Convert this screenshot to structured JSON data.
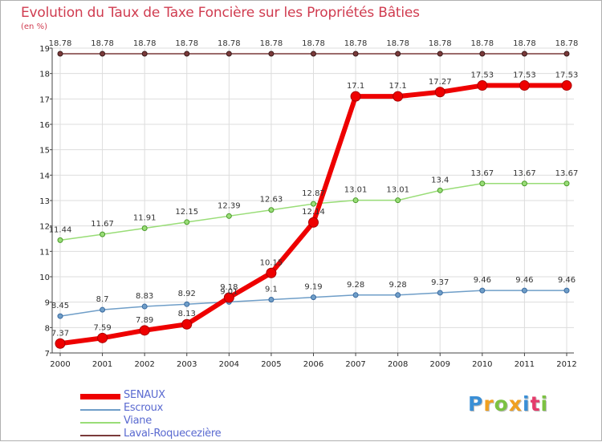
{
  "title": "Evolution du Taux de Taxe Foncière sur les Propriétés Bâties",
  "unit": "(en %)",
  "brand": {
    "letters": [
      "P",
      "r",
      "o",
      "x",
      "i",
      "t",
      "i"
    ],
    "colors": [
      "#3a8fd6",
      "#f0a020",
      "#7cc242",
      "#f0a020",
      "#3a8fd6",
      "#e53b6b",
      "#7cc242"
    ]
  },
  "chart_data": {
    "type": "line",
    "title": "Evolution du Taux de Taxe Foncière sur les Propriétés Bâties",
    "ylabel": "(en %)",
    "xlabel": "",
    "categories": [
      "2000",
      "2001",
      "2002",
      "2003",
      "2004",
      "2005",
      "2006",
      "2007",
      "2008",
      "2009",
      "2010",
      "2011",
      "2012"
    ],
    "ylim": [
      7,
      19
    ],
    "yticks": [
      7,
      8,
      9,
      10,
      11,
      12,
      13,
      14,
      15,
      16,
      17,
      18,
      19
    ],
    "grid": true,
    "legend_position": "bottom-left",
    "series": [
      {
        "name": "SENAUX",
        "color": "#ee0000",
        "values": [
          7.37,
          7.59,
          7.89,
          8.13,
          9.18,
          10.15,
          12.14,
          17.1,
          17.1,
          17.27,
          17.53,
          17.53,
          17.53
        ],
        "labels": [
          "7.37",
          "7.59",
          "7.89",
          "8.13",
          "9.18",
          "10.15",
          "12.14",
          "17.1",
          "17.1",
          "17.27",
          "17.53",
          "17.53",
          "17.53"
        ]
      },
      {
        "name": "Escroux",
        "color": "#6f9ec8",
        "values": [
          8.45,
          8.7,
          8.83,
          8.92,
          9.01,
          9.1,
          9.19,
          9.28,
          9.28,
          9.37,
          9.46,
          9.46,
          9.46
        ],
        "labels": [
          "8.45",
          "8.7",
          "8.83",
          "8.92",
          "9.01",
          "9.1",
          "9.19",
          "9.28",
          "9.28",
          "9.37",
          "9.46",
          "9.46",
          "9.46"
        ]
      },
      {
        "name": "Viane",
        "color": "#99dd77",
        "values": [
          11.44,
          11.67,
          11.91,
          12.15,
          12.39,
          12.63,
          12.87,
          13.01,
          13.01,
          13.4,
          13.67,
          13.67,
          13.67
        ],
        "labels": [
          "11.44",
          "11.67",
          "11.91",
          "12.15",
          "12.39",
          "12.63",
          "12.87",
          "13.01",
          "13.01",
          "13.4",
          "13.67",
          "13.67",
          "13.67"
        ]
      },
      {
        "name": "Laval-Roquecezière",
        "color": "#7a3a3a",
        "values": [
          18.78,
          18.78,
          18.78,
          18.78,
          18.78,
          18.78,
          18.78,
          18.78,
          18.78,
          18.78,
          18.78,
          18.78,
          18.78
        ],
        "labels": [
          "18.78",
          "18.78",
          "18.78",
          "18.78",
          "18.78",
          "18.78",
          "18.78",
          "18.78",
          "18.78",
          "18.78",
          "18.78",
          "18.78",
          "18.78"
        ]
      }
    ]
  }
}
